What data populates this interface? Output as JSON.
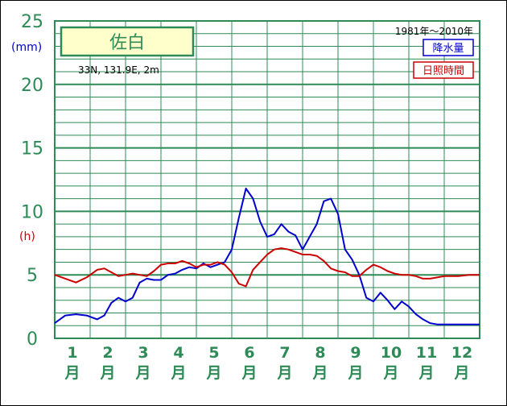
{
  "chart_data": {
    "type": "line",
    "station": "佐白",
    "location": "33N,  131.9E,  2m",
    "period": "1981年〜2010年",
    "y_unit_precip": "(mm)",
    "y_unit_sun": "(h)",
    "ylim": [
      0,
      25
    ],
    "yticks": [
      "0",
      "5",
      "10",
      "15",
      "20",
      "25"
    ],
    "months": [
      {
        "num": "1",
        "kanji": "月"
      },
      {
        "num": "2",
        "kanji": "月"
      },
      {
        "num": "3",
        "kanji": "月"
      },
      {
        "num": "4",
        "kanji": "月"
      },
      {
        "num": "5",
        "kanji": "月"
      },
      {
        "num": "6",
        "kanji": "月"
      },
      {
        "num": "7",
        "kanji": "月"
      },
      {
        "num": "8",
        "kanji": "月"
      },
      {
        "num": "9",
        "kanji": "月"
      },
      {
        "num": "10",
        "kanji": "月"
      },
      {
        "num": "11",
        "kanji": "月"
      },
      {
        "num": "12",
        "kanji": "月"
      }
    ],
    "x": [
      0.0,
      0.3,
      0.6,
      0.9,
      1.2,
      1.4,
      1.6,
      1.8,
      2.0,
      2.2,
      2.4,
      2.6,
      2.8,
      3.0,
      3.2,
      3.4,
      3.6,
      3.8,
      4.0,
      4.2,
      4.4,
      4.6,
      4.8,
      5.0,
      5.2,
      5.4,
      5.6,
      5.8,
      6.0,
      6.2,
      6.4,
      6.6,
      6.8,
      7.0,
      7.2,
      7.4,
      7.6,
      7.8,
      8.0,
      8.2,
      8.4,
      8.6,
      8.8,
      9.0,
      9.2,
      9.4,
      9.6,
      9.8,
      10.0,
      10.2,
      10.4,
      10.6,
      10.8,
      11.0,
      11.2,
      11.4,
      11.7,
      12.0
    ],
    "series": [
      {
        "name": "降水量",
        "color": "#0000cc",
        "values": [
          1.2,
          1.8,
          1.9,
          1.8,
          1.5,
          1.8,
          2.8,
          3.2,
          2.9,
          3.2,
          4.4,
          4.7,
          4.6,
          4.6,
          5.0,
          5.1,
          5.4,
          5.6,
          5.5,
          5.9,
          5.6,
          5.8,
          6.0,
          7.0,
          9.5,
          11.8,
          11.0,
          9.2,
          8.0,
          8.2,
          9.0,
          8.4,
          8.1,
          7.0,
          8.0,
          9.0,
          10.8,
          11.0,
          9.8,
          7.0,
          6.2,
          5.0,
          3.2,
          2.9,
          3.6,
          3.0,
          2.3,
          2.9,
          2.5,
          1.9,
          1.5,
          1.2,
          1.1,
          1.1,
          1.1,
          1.1,
          1.1,
          1.1
        ]
      },
      {
        "name": "日照時間",
        "color": "#cc0000",
        "values": [
          5.0,
          4.7,
          4.4,
          4.8,
          5.4,
          5.5,
          5.2,
          4.9,
          5.0,
          5.1,
          5.0,
          4.9,
          5.3,
          5.8,
          5.9,
          5.9,
          6.1,
          5.9,
          5.6,
          5.8,
          5.8,
          6.0,
          5.8,
          5.2,
          4.3,
          4.1,
          5.4,
          6.0,
          6.6,
          7.0,
          7.1,
          7.0,
          6.8,
          6.6,
          6.6,
          6.5,
          6.1,
          5.5,
          5.3,
          5.2,
          4.9,
          4.9,
          5.4,
          5.8,
          5.6,
          5.3,
          5.1,
          5.0,
          5.0,
          4.9,
          4.7,
          4.7,
          4.8,
          4.9,
          4.9,
          4.9,
          5.0,
          5.0
        ]
      }
    ],
    "grid": true
  }
}
